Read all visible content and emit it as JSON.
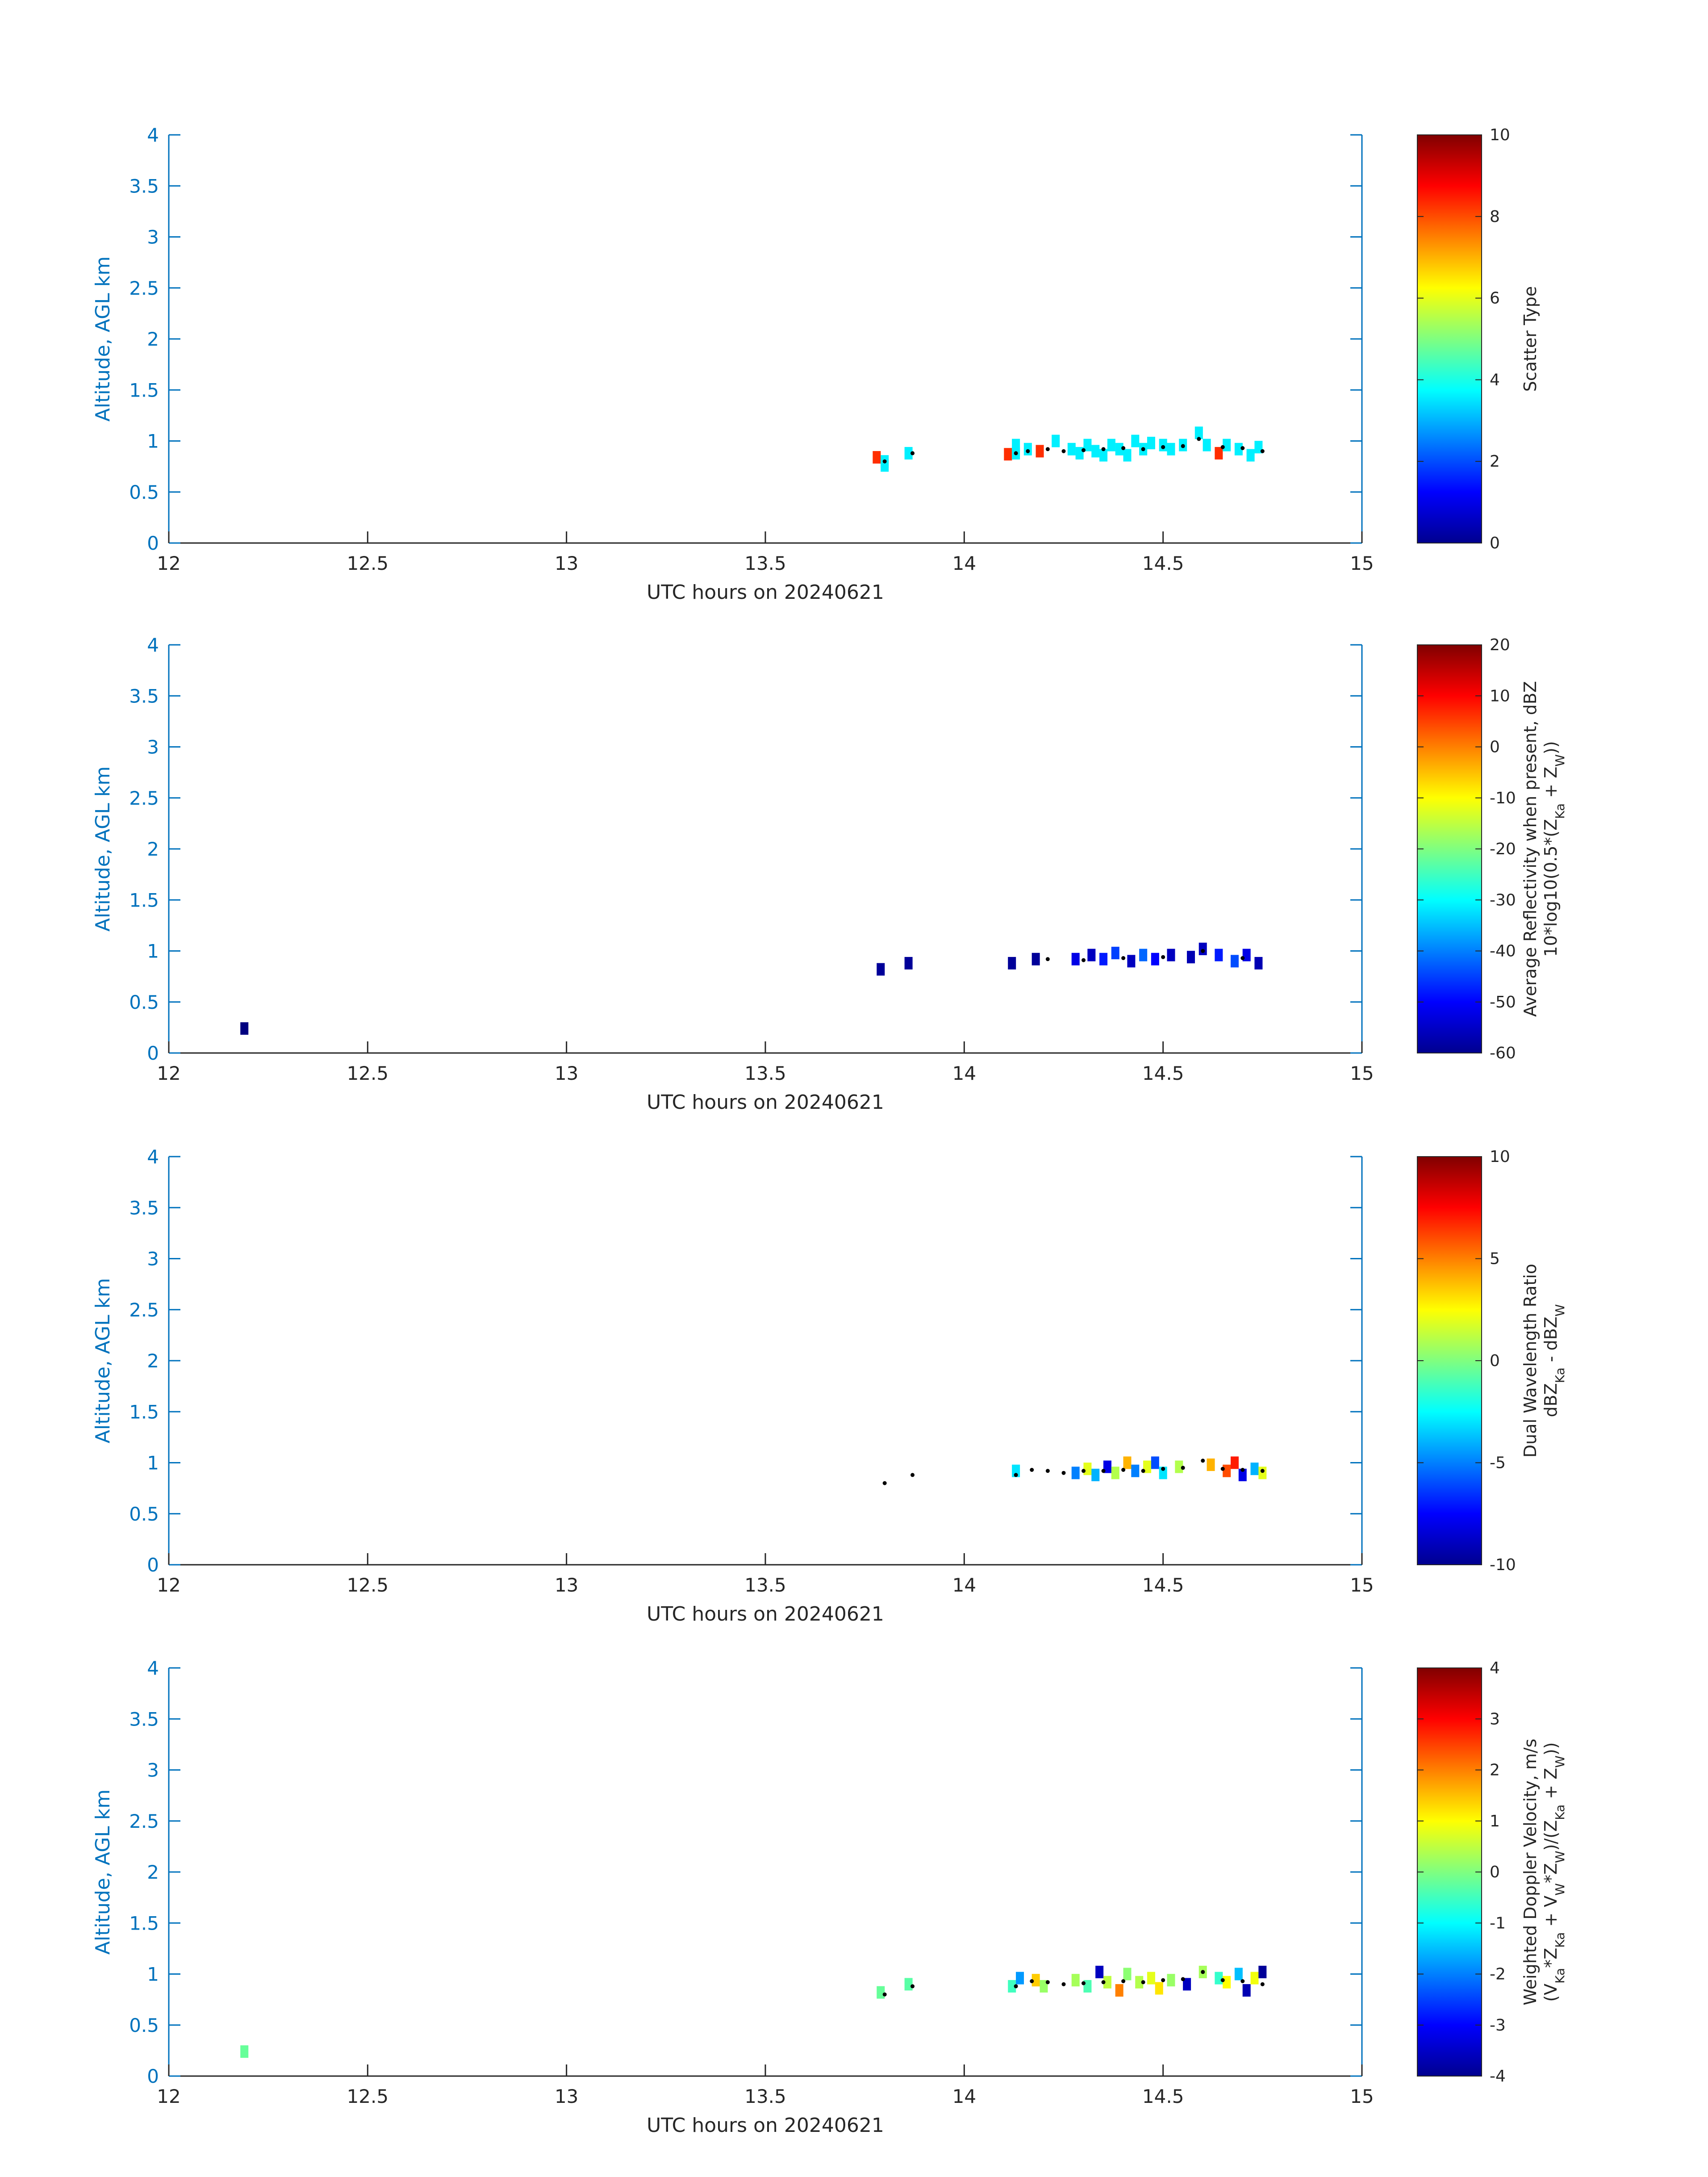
{
  "figure": {
    "colors": {
      "axis_left": "#0072bd",
      "axis_text": "#262626",
      "dots": "#000000",
      "background": "#ffffff"
    },
    "colormap": "jet"
  },
  "chart_data": [
    {
      "type": "heatmap",
      "xlabel": "UTC hours on 20240621",
      "ylabel": "Altitude, AGL km",
      "xlim": [
        12,
        15
      ],
      "ylim": [
        0,
        4
      ],
      "xticks": [
        "12",
        "12.5",
        "13",
        "13.5",
        "14",
        "14.5",
        "15"
      ],
      "yticks": [
        "0",
        "0.5",
        "1",
        "1.5",
        "2",
        "2.5",
        "3",
        "3.5",
        "4"
      ],
      "colorbar": {
        "label_lines": [
          "Scatter Type"
        ],
        "clim": [
          0,
          10
        ],
        "ticks": [
          "0",
          "2",
          "4",
          "6",
          "8",
          "10"
        ]
      },
      "cells": [
        [
          13.78,
          0.84,
          8.3
        ],
        [
          13.8,
          0.8,
          3.6
        ],
        [
          13.8,
          0.76,
          3.6
        ],
        [
          13.86,
          0.88,
          3.6
        ],
        [
          14.11,
          0.87,
          8.3
        ],
        [
          14.13,
          0.96,
          3.6
        ],
        [
          14.13,
          0.88,
          3.6
        ],
        [
          14.16,
          0.92,
          3.6
        ],
        [
          14.19,
          0.9,
          8.3
        ],
        [
          14.23,
          1.0,
          3.6
        ],
        [
          14.27,
          0.92,
          3.6
        ],
        [
          14.29,
          0.88,
          3.6
        ],
        [
          14.31,
          0.96,
          3.6
        ],
        [
          14.33,
          0.9,
          3.6
        ],
        [
          14.35,
          0.86,
          3.6
        ],
        [
          14.37,
          0.96,
          3.6
        ],
        [
          14.39,
          0.92,
          3.6
        ],
        [
          14.41,
          0.86,
          3.6
        ],
        [
          14.43,
          1.0,
          3.6
        ],
        [
          14.45,
          0.92,
          3.6
        ],
        [
          14.47,
          0.98,
          3.6
        ],
        [
          14.5,
          0.96,
          3.6
        ],
        [
          14.52,
          0.92,
          3.6
        ],
        [
          14.55,
          0.96,
          3.6
        ],
        [
          14.59,
          1.08,
          3.6
        ],
        [
          14.61,
          0.96,
          3.6
        ],
        [
          14.64,
          0.88,
          8.3
        ],
        [
          14.66,
          0.96,
          3.6
        ],
        [
          14.69,
          0.92,
          3.6
        ],
        [
          14.72,
          0.86,
          3.6
        ],
        [
          14.74,
          0.94,
          3.6
        ]
      ],
      "dots": [
        [
          13.8,
          0.8
        ],
        [
          13.87,
          0.88
        ],
        [
          14.13,
          0.88
        ],
        [
          14.16,
          0.9
        ],
        [
          14.21,
          0.92
        ],
        [
          14.25,
          0.9
        ],
        [
          14.3,
          0.91
        ],
        [
          14.35,
          0.92
        ],
        [
          14.4,
          0.93
        ],
        [
          14.45,
          0.92
        ],
        [
          14.5,
          0.94
        ],
        [
          14.55,
          0.95
        ],
        [
          14.59,
          1.02
        ],
        [
          14.65,
          0.94
        ],
        [
          14.7,
          0.93
        ],
        [
          14.75,
          0.9
        ]
      ]
    },
    {
      "type": "heatmap",
      "xlabel": "UTC hours on 20240621",
      "ylabel": "Altitude, AGL km",
      "xlim": [
        12,
        15
      ],
      "ylim": [
        0,
        4
      ],
      "xticks": [
        "12",
        "12.5",
        "13",
        "13.5",
        "14",
        "14.5",
        "15"
      ],
      "yticks": [
        "0",
        "0.5",
        "1",
        "1.5",
        "2",
        "2.5",
        "3",
        "3.5",
        "4"
      ],
      "colorbar": {
        "label_lines": [
          "Average Reflectivity when present, dBZ",
          "10*log10(0.5*(Z",
          "Ka",
          " + Z",
          "W",
          "))"
        ],
        "clim": [
          -60,
          20
        ],
        "ticks": [
          "-60",
          "-50",
          "-40",
          "-30",
          "-20",
          "-10",
          "0",
          "10",
          "20"
        ]
      },
      "cells": [
        [
          12.19,
          0.24,
          -60
        ],
        [
          13.79,
          0.82,
          -58
        ],
        [
          13.86,
          0.88,
          -58
        ],
        [
          14.12,
          0.88,
          -58
        ],
        [
          14.18,
          0.92,
          -58
        ],
        [
          14.28,
          0.92,
          -52
        ],
        [
          14.32,
          0.96,
          -55
        ],
        [
          14.35,
          0.92,
          -48
        ],
        [
          14.38,
          0.98,
          -45
        ],
        [
          14.42,
          0.9,
          -55
        ],
        [
          14.45,
          0.96,
          -42
        ],
        [
          14.48,
          0.92,
          -50
        ],
        [
          14.52,
          0.96,
          -55
        ],
        [
          14.57,
          0.94,
          -56
        ],
        [
          14.6,
          1.02,
          -55
        ],
        [
          14.64,
          0.96,
          -48
        ],
        [
          14.68,
          0.9,
          -44
        ],
        [
          14.71,
          0.96,
          -52
        ],
        [
          14.74,
          0.88,
          -56
        ]
      ],
      "dots": [
        [
          14.21,
          0.92
        ],
        [
          14.3,
          0.91
        ],
        [
          14.4,
          0.93
        ],
        [
          14.5,
          0.94
        ],
        [
          14.6,
          1.0
        ],
        [
          14.7,
          0.93
        ]
      ]
    },
    {
      "type": "heatmap",
      "xlabel": "UTC hours on 20240621",
      "ylabel": "Altitude, AGL km",
      "xlim": [
        12,
        15
      ],
      "ylim": [
        0,
        4
      ],
      "xticks": [
        "12",
        "12.5",
        "13",
        "13.5",
        "14",
        "14.5",
        "15"
      ],
      "yticks": [
        "0",
        "0.5",
        "1",
        "1.5",
        "2",
        "2.5",
        "3",
        "3.5",
        "4"
      ],
      "colorbar": {
        "label_lines": [
          "Dual Wavelength Ratio",
          "dBZ",
          "Ka",
          " - dBZ",
          "W"
        ],
        "clim": [
          -10,
          10
        ],
        "ticks": [
          "-10",
          "-5",
          "0",
          "5",
          "10"
        ]
      },
      "cells": [
        [
          14.13,
          0.92,
          -3
        ],
        [
          14.28,
          0.9,
          -5
        ],
        [
          14.31,
          0.94,
          2
        ],
        [
          14.33,
          0.88,
          -4
        ],
        [
          14.36,
          0.96,
          -8
        ],
        [
          14.38,
          0.9,
          1
        ],
        [
          14.41,
          1.0,
          4
        ],
        [
          14.43,
          0.92,
          -5
        ],
        [
          14.46,
          0.96,
          2
        ],
        [
          14.48,
          1.0,
          -6
        ],
        [
          14.5,
          0.9,
          -3
        ],
        [
          14.54,
          0.96,
          1
        ],
        [
          14.62,
          0.98,
          4
        ],
        [
          14.66,
          0.92,
          6
        ],
        [
          14.68,
          1.0,
          7
        ],
        [
          14.7,
          0.88,
          -8
        ],
        [
          14.73,
          0.94,
          -4
        ],
        [
          14.75,
          0.9,
          2
        ]
      ],
      "dots": [
        [
          13.8,
          0.8
        ],
        [
          13.87,
          0.88
        ],
        [
          14.13,
          0.88
        ],
        [
          14.17,
          0.93
        ],
        [
          14.21,
          0.92
        ],
        [
          14.25,
          0.9
        ],
        [
          14.3,
          0.92
        ],
        [
          14.35,
          0.92
        ],
        [
          14.4,
          0.93
        ],
        [
          14.45,
          0.92
        ],
        [
          14.5,
          0.94
        ],
        [
          14.55,
          0.95
        ],
        [
          14.6,
          1.02
        ],
        [
          14.65,
          0.94
        ],
        [
          14.7,
          0.93
        ],
        [
          14.75,
          0.92
        ]
      ]
    },
    {
      "type": "heatmap",
      "xlabel": "UTC hours on 20240621",
      "ylabel": "Altitude, AGL km",
      "xlim": [
        12,
        15
      ],
      "ylim": [
        0,
        4
      ],
      "xticks": [
        "12",
        "12.5",
        "13",
        "13.5",
        "14",
        "14.5",
        "15"
      ],
      "yticks": [
        "0",
        "0.5",
        "1",
        "1.5",
        "2",
        "2.5",
        "3",
        "3.5",
        "4"
      ],
      "colorbar": {
        "label_lines": [
          "Weighted Doppler Velocity, m/s",
          "(V",
          "Ka",
          "*Z",
          "Ka",
          " + V",
          "W",
          "*Z",
          "W",
          ")/(Z",
          "Ka",
          " + Z",
          "W",
          "))"
        ],
        "clim": [
          -4,
          4
        ],
        "ticks": [
          "-4",
          "-3",
          "-2",
          "-1",
          "0",
          "1",
          "2",
          "3",
          "4"
        ]
      },
      "cells": [
        [
          12.19,
          0.24,
          -0.2
        ],
        [
          13.79,
          0.82,
          -0.2
        ],
        [
          13.86,
          0.9,
          -0.3
        ],
        [
          14.12,
          0.88,
          -0.5
        ],
        [
          14.14,
          0.96,
          -1.8
        ],
        [
          14.18,
          0.94,
          1.4
        ],
        [
          14.2,
          0.88,
          0.2
        ],
        [
          14.28,
          0.94,
          0.3
        ],
        [
          14.31,
          0.88,
          -0.4
        ],
        [
          14.34,
          1.02,
          -3.5
        ],
        [
          14.36,
          0.92,
          0.5
        ],
        [
          14.39,
          0.84,
          2.0
        ],
        [
          14.41,
          1.0,
          0.1
        ],
        [
          14.44,
          0.92,
          0.4
        ],
        [
          14.47,
          0.96,
          0.8
        ],
        [
          14.49,
          0.86,
          1.2
        ],
        [
          14.52,
          0.94,
          0.2
        ],
        [
          14.56,
          0.9,
          -3.5
        ],
        [
          14.6,
          1.02,
          0.3
        ],
        [
          14.64,
          0.96,
          -0.6
        ],
        [
          14.66,
          0.92,
          1.0
        ],
        [
          14.69,
          1.0,
          -1.5
        ],
        [
          14.71,
          0.84,
          -3.6
        ],
        [
          14.73,
          0.96,
          0.9
        ],
        [
          14.75,
          1.02,
          -3.8
        ]
      ],
      "dots": [
        [
          13.8,
          0.8
        ],
        [
          13.87,
          0.88
        ],
        [
          14.13,
          0.88
        ],
        [
          14.17,
          0.93
        ],
        [
          14.21,
          0.92
        ],
        [
          14.25,
          0.9
        ],
        [
          14.3,
          0.91
        ],
        [
          14.35,
          0.92
        ],
        [
          14.4,
          0.93
        ],
        [
          14.45,
          0.92
        ],
        [
          14.5,
          0.94
        ],
        [
          14.55,
          0.95
        ],
        [
          14.6,
          1.02
        ],
        [
          14.65,
          0.94
        ],
        [
          14.7,
          0.93
        ],
        [
          14.75,
          0.9
        ]
      ]
    }
  ]
}
